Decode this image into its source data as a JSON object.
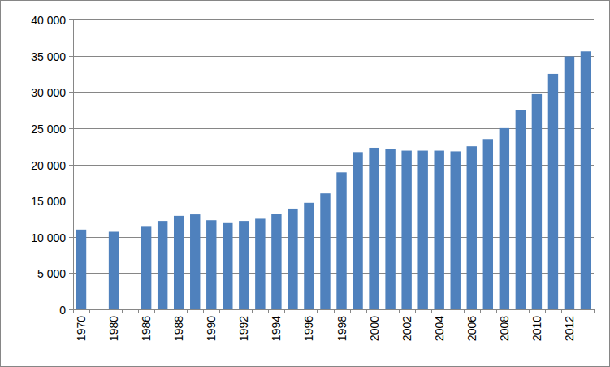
{
  "chart_data": {
    "type": "bar",
    "categories": [
      "1970",
      null,
      "1980",
      null,
      "1986",
      null,
      "1988",
      null,
      "1990",
      null,
      "1992",
      null,
      "1994",
      null,
      "1996",
      null,
      "1998",
      null,
      "2000",
      null,
      "2002",
      null,
      "2004",
      null,
      "2006",
      null,
      "2008",
      null,
      "2010",
      null,
      "2012",
      null
    ],
    "values": [
      11000,
      null,
      10700,
      null,
      11500,
      12200,
      12900,
      13100,
      12300,
      11900,
      12200,
      12500,
      13200,
      13900,
      14700,
      16000,
      18900,
      21700,
      22300,
      22100,
      21900,
      21900,
      21900,
      21800,
      22500,
      23500,
      25000,
      27500,
      29700,
      32500,
      34900,
      35600
    ],
    "color": "#4f81bd",
    "ylim": [
      0,
      40000
    ],
    "yticks": [
      0,
      {
        "value": 5000,
        "label": "5 000"
      },
      {
        "value": 10000,
        "label": "10 000"
      },
      {
        "value": 15000,
        "label": "15 000"
      },
      {
        "value": 20000,
        "label": "20 000"
      },
      {
        "value": 25000,
        "label": "25 000"
      },
      {
        "value": 30000,
        "label": "30 000"
      },
      {
        "value": 35000,
        "label": "35 000"
      },
      {
        "value": 40000,
        "label": "40 000"
      }
    ],
    "grid": true
  }
}
